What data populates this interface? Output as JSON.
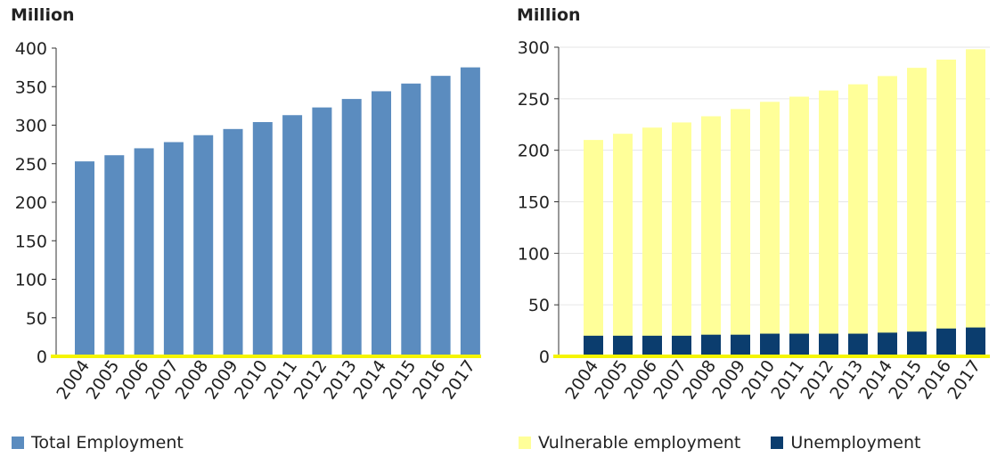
{
  "chart_data": [
    {
      "type": "bar",
      "unit_label": "Million",
      "categories": [
        "2004",
        "2005",
        "2006",
        "2007",
        "2008",
        "2009",
        "2010",
        "2011",
        "2012",
        "2013",
        "2014",
        "2015",
        "2016",
        "2017"
      ],
      "series": [
        {
          "name": "Total Employment",
          "color": "#5b8cbf",
          "values": [
            253,
            261,
            270,
            278,
            287,
            295,
            304,
            313,
            323,
            334,
            344,
            354,
            364,
            375
          ]
        }
      ],
      "ylim": [
        0,
        400
      ],
      "yticks": [
        0,
        50,
        100,
        150,
        200,
        250,
        300,
        350,
        400
      ],
      "grid": false,
      "legend": "bottom-left"
    },
    {
      "type": "bar",
      "unit_label": "Million",
      "categories": [
        "2004",
        "2005",
        "2006",
        "2007",
        "2008",
        "2009",
        "2010",
        "2011",
        "2012",
        "2013",
        "2014",
        "2015",
        "2016",
        "2017"
      ],
      "series": [
        {
          "name": "Vulnerable employment",
          "color": "#ffff99",
          "values": [
            210,
            216,
            222,
            227,
            233,
            240,
            247,
            252,
            258,
            264,
            272,
            280,
            288,
            298
          ]
        },
        {
          "name": "Unemployment",
          "color": "#0b3d6e",
          "values": [
            20,
            20,
            20,
            20,
            21,
            21,
            22,
            22,
            22,
            22,
            23,
            24,
            27,
            28
          ]
        }
      ],
      "ylim": [
        0,
        300
      ],
      "yticks": [
        0,
        50,
        100,
        150,
        200,
        250,
        300
      ],
      "grid": true,
      "legend": "bottom"
    }
  ],
  "colors": {
    "baseline": "#f5f500",
    "gridline": "#e6e6e6"
  }
}
